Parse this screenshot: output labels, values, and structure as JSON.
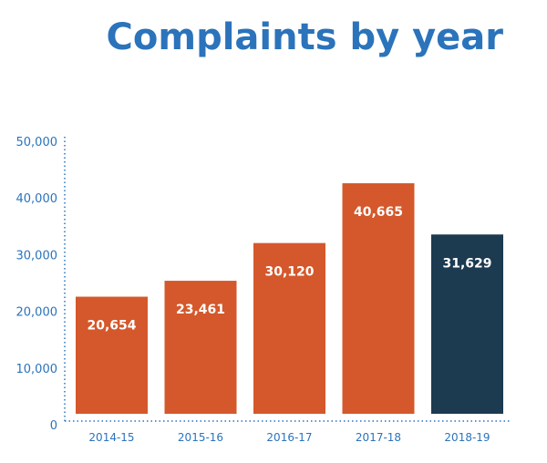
{
  "chart_data": {
    "type": "bar",
    "title": "Complaints by year",
    "categories": [
      "2014-15",
      "2015-16",
      "2016-17",
      "2017-18",
      "2018-19"
    ],
    "values": [
      20654,
      23461,
      30120,
      40665,
      31629
    ],
    "data_labels": [
      "20,654",
      "23,461",
      "30,120",
      "40,665",
      "31,629"
    ],
    "bar_colors": [
      "#d4582b",
      "#d4582b",
      "#d4582b",
      "#d4582b",
      "#1c3a50"
    ],
    "ylim": [
      0,
      50000
    ],
    "yticks": [
      0,
      10000,
      20000,
      30000,
      40000,
      50000
    ],
    "ytick_labels": [
      "0",
      "10,000",
      "20,000",
      "30,000",
      "40,000",
      "50,000"
    ],
    "xlabel": "",
    "ylabel": "",
    "grid": false,
    "axis_color": "#2b73bb"
  }
}
